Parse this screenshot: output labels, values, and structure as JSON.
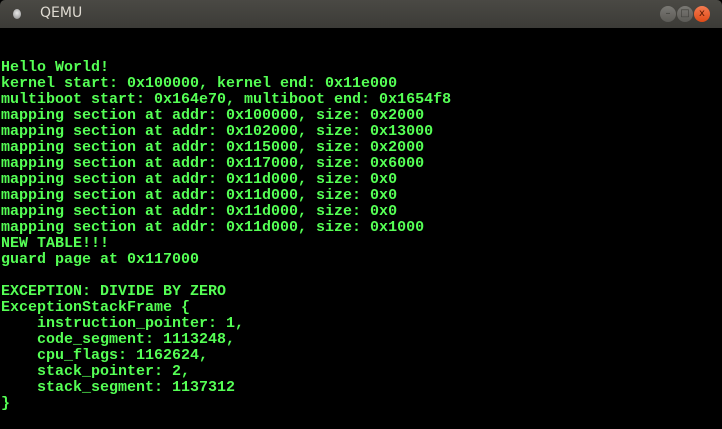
{
  "window": {
    "title": "QEMU",
    "buttons": {
      "minimize": "–",
      "maximize": "□",
      "close": "x"
    }
  },
  "console": {
    "text_color": "#55ff55",
    "lines": [
      "Hello World!",
      "kernel start: 0x100000, kernel end: 0x11e000",
      "multiboot start: 0x164e70, multiboot end: 0x1654f8",
      "mapping section at addr: 0x100000, size: 0x2000",
      "mapping section at addr: 0x102000, size: 0x13000",
      "mapping section at addr: 0x115000, size: 0x2000",
      "mapping section at addr: 0x117000, size: 0x6000",
      "mapping section at addr: 0x11d000, size: 0x0",
      "mapping section at addr: 0x11d000, size: 0x0",
      "mapping section at addr: 0x11d000, size: 0x0",
      "mapping section at addr: 0x11d000, size: 0x1000",
      "NEW TABLE!!!",
      "guard page at 0x117000",
      "",
      "EXCEPTION: DIVIDE BY ZERO",
      "ExceptionStackFrame {",
      "    instruction_pointer: 1,",
      "    code_segment: 1113248,",
      "    cpu_flags: 1162624,",
      "    stack_pointer: 2,",
      "    stack_segment: 1137312",
      "}"
    ]
  }
}
